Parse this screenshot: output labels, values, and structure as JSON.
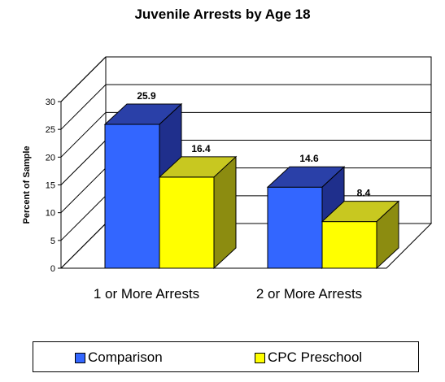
{
  "chart_data": {
    "type": "bar",
    "title": "Juvenile Arrests by Age 18",
    "ylabel": "Percent of Sample",
    "xlabel": "",
    "categories": [
      "1 or More Arrests",
      "2 or More Arrests"
    ],
    "ylim": [
      0,
      30
    ],
    "yticks": [
      "0",
      "5",
      "10",
      "15",
      "20",
      "25",
      "30"
    ],
    "series": [
      {
        "name": "Comparison",
        "values": [
          25.9,
          14.6
        ],
        "labels": [
          "25.9",
          "14.6"
        ]
      },
      {
        "name": "CPC Preschool",
        "values": [
          16.4,
          8.4
        ],
        "labels": [
          "16.4",
          "8.4"
        ]
      }
    ],
    "grid": true,
    "legend": "bottom",
    "colors": {
      "Comparison": {
        "front": "#3366ff",
        "top": "#2a40a8",
        "side": "#1f2f8c"
      },
      "CPC Preschool": {
        "front": "#ffff00",
        "top": "#c8c820",
        "side": "#8c8c10"
      }
    }
  }
}
